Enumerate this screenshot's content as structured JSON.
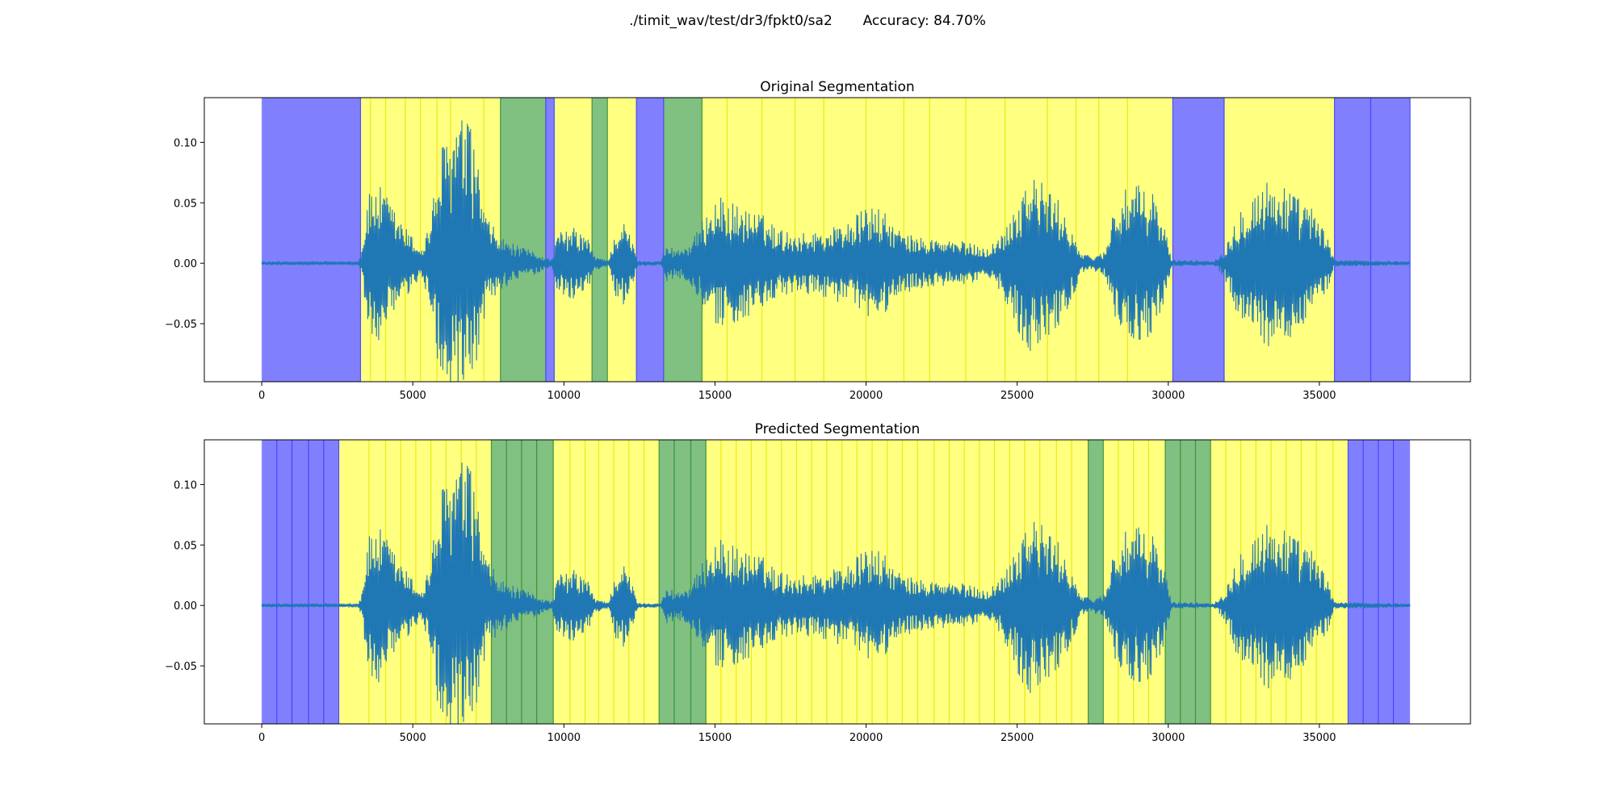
{
  "figure": {
    "title": "./timit_wav/test/dr3/fpkt0/sa2       Accuracy: 84.70%"
  },
  "colors": {
    "silence": "#8080ff",
    "voiced": "#ffff80",
    "unvoiced": "#80c080",
    "waveform": "#1f77b4",
    "boundary_silence": "#3b3bff",
    "boundary_voiced": "#e6e600",
    "boundary_unvoiced": "#2e8b2e"
  },
  "chart_data": [
    {
      "type": "line",
      "title": "Original Segmentation",
      "xlabel": "",
      "ylabel": "",
      "xlim": [
        -1900,
        40000
      ],
      "ylim": [
        -0.098,
        0.137
      ],
      "xticks": [
        0,
        5000,
        10000,
        15000,
        20000,
        25000,
        30000,
        35000
      ],
      "xtick_labels": [
        "0",
        "5000",
        "10000",
        "15000",
        "20000",
        "25000",
        "30000",
        "35000"
      ],
      "yticks": [
        -0.05,
        0.0,
        0.05,
        0.1
      ],
      "ytick_labels": [
        "−0.05",
        "0.00",
        "0.05",
        "0.10"
      ],
      "segments": [
        {
          "start": 0,
          "end": 3270,
          "class": "silence"
        },
        {
          "start": 3270,
          "end": 7900,
          "class": "voiced"
        },
        {
          "start": 7900,
          "end": 9400,
          "class": "unvoiced"
        },
        {
          "start": 9400,
          "end": 9680,
          "class": "silence"
        },
        {
          "start": 9680,
          "end": 10930,
          "class": "voiced"
        },
        {
          "start": 10930,
          "end": 11440,
          "class": "unvoiced"
        },
        {
          "start": 11440,
          "end": 12400,
          "class": "voiced"
        },
        {
          "start": 12400,
          "end": 13300,
          "class": "silence"
        },
        {
          "start": 13300,
          "end": 14570,
          "class": "unvoiced"
        },
        {
          "start": 14570,
          "end": 30150,
          "class": "voiced"
        },
        {
          "start": 30150,
          "end": 31850,
          "class": "silence"
        },
        {
          "start": 31850,
          "end": 35500,
          "class": "voiced"
        },
        {
          "start": 35500,
          "end": 38000,
          "class": "silence"
        }
      ],
      "boundaries": [
        {
          "x": 3270,
          "class": "silence"
        },
        {
          "x": 3600,
          "class": "voiced"
        },
        {
          "x": 4100,
          "class": "voiced"
        },
        {
          "x": 4750,
          "class": "voiced"
        },
        {
          "x": 5250,
          "class": "voiced"
        },
        {
          "x": 5800,
          "class": "voiced"
        },
        {
          "x": 6250,
          "class": "voiced"
        },
        {
          "x": 7350,
          "class": "voiced"
        },
        {
          "x": 7900,
          "class": "unvoiced"
        },
        {
          "x": 9400,
          "class": "silence"
        },
        {
          "x": 9680,
          "class": "silence"
        },
        {
          "x": 10930,
          "class": "unvoiced"
        },
        {
          "x": 11440,
          "class": "unvoiced"
        },
        {
          "x": 12400,
          "class": "silence"
        },
        {
          "x": 13300,
          "class": "silence"
        },
        {
          "x": 14570,
          "class": "unvoiced"
        },
        {
          "x": 15400,
          "class": "voiced"
        },
        {
          "x": 16550,
          "class": "voiced"
        },
        {
          "x": 17650,
          "class": "voiced"
        },
        {
          "x": 18600,
          "class": "voiced"
        },
        {
          "x": 20000,
          "class": "voiced"
        },
        {
          "x": 21250,
          "class": "voiced"
        },
        {
          "x": 22100,
          "class": "voiced"
        },
        {
          "x": 23300,
          "class": "voiced"
        },
        {
          "x": 24600,
          "class": "voiced"
        },
        {
          "x": 26000,
          "class": "voiced"
        },
        {
          "x": 26950,
          "class": "voiced"
        },
        {
          "x": 27700,
          "class": "voiced"
        },
        {
          "x": 28650,
          "class": "voiced"
        },
        {
          "x": 30150,
          "class": "silence"
        },
        {
          "x": 31850,
          "class": "silence"
        },
        {
          "x": 35500,
          "class": "silence"
        },
        {
          "x": 36700,
          "class": "silence"
        },
        {
          "x": 38000,
          "class": "silence"
        }
      ]
    },
    {
      "type": "line",
      "title": "Predicted Segmentation",
      "xlabel": "",
      "ylabel": "",
      "xlim": [
        -1900,
        40000
      ],
      "ylim": [
        -0.098,
        0.137
      ],
      "xticks": [
        0,
        5000,
        10000,
        15000,
        20000,
        25000,
        30000,
        35000
      ],
      "xtick_labels": [
        "0",
        "5000",
        "10000",
        "15000",
        "20000",
        "25000",
        "30000",
        "35000"
      ],
      "yticks": [
        -0.05,
        0.0,
        0.05,
        0.1
      ],
      "ytick_labels": [
        "−0.05",
        "0.00",
        "0.05",
        "0.10"
      ],
      "segments": [
        {
          "start": 0,
          "end": 2550,
          "class": "silence"
        },
        {
          "start": 2550,
          "end": 7600,
          "class": "voiced"
        },
        {
          "start": 7600,
          "end": 9650,
          "class": "unvoiced"
        },
        {
          "start": 9650,
          "end": 13150,
          "class": "voiced"
        },
        {
          "start": 13150,
          "end": 14700,
          "class": "unvoiced"
        },
        {
          "start": 14700,
          "end": 27350,
          "class": "voiced"
        },
        {
          "start": 27350,
          "end": 27850,
          "class": "unvoiced"
        },
        {
          "start": 27850,
          "end": 29900,
          "class": "voiced"
        },
        {
          "start": 29900,
          "end": 31400,
          "class": "unvoiced"
        },
        {
          "start": 31400,
          "end": 35950,
          "class": "voiced"
        },
        {
          "start": 35950,
          "end": 38000,
          "class": "silence"
        }
      ],
      "boundaries": [
        {
          "x": 500,
          "class": "silence"
        },
        {
          "x": 1000,
          "class": "silence"
        },
        {
          "x": 1550,
          "class": "silence"
        },
        {
          "x": 2050,
          "class": "silence"
        },
        {
          "x": 2550,
          "class": "silence"
        },
        {
          "x": 3550,
          "class": "voiced"
        },
        {
          "x": 4100,
          "class": "voiced"
        },
        {
          "x": 4600,
          "class": "voiced"
        },
        {
          "x": 5100,
          "class": "voiced"
        },
        {
          "x": 5600,
          "class": "voiced"
        },
        {
          "x": 6100,
          "class": "voiced"
        },
        {
          "x": 6600,
          "class": "voiced"
        },
        {
          "x": 7100,
          "class": "voiced"
        },
        {
          "x": 7600,
          "class": "unvoiced"
        },
        {
          "x": 8100,
          "class": "unvoiced"
        },
        {
          "x": 8600,
          "class": "unvoiced"
        },
        {
          "x": 9100,
          "class": "unvoiced"
        },
        {
          "x": 9650,
          "class": "unvoiced"
        },
        {
          "x": 10200,
          "class": "voiced"
        },
        {
          "x": 10700,
          "class": "voiced"
        },
        {
          "x": 11150,
          "class": "voiced"
        },
        {
          "x": 11650,
          "class": "voiced"
        },
        {
          "x": 12150,
          "class": "voiced"
        },
        {
          "x": 12650,
          "class": "voiced"
        },
        {
          "x": 13150,
          "class": "unvoiced"
        },
        {
          "x": 13650,
          "class": "unvoiced"
        },
        {
          "x": 14200,
          "class": "unvoiced"
        },
        {
          "x": 14700,
          "class": "unvoiced"
        },
        {
          "x": 15200,
          "class": "voiced"
        },
        {
          "x": 15700,
          "class": "voiced"
        },
        {
          "x": 16200,
          "class": "voiced"
        },
        {
          "x": 16700,
          "class": "voiced"
        },
        {
          "x": 17200,
          "class": "voiced"
        },
        {
          "x": 17700,
          "class": "voiced"
        },
        {
          "x": 18200,
          "class": "voiced"
        },
        {
          "x": 18700,
          "class": "voiced"
        },
        {
          "x": 19200,
          "class": "voiced"
        },
        {
          "x": 19700,
          "class": "voiced"
        },
        {
          "x": 20200,
          "class": "voiced"
        },
        {
          "x": 20700,
          "class": "voiced"
        },
        {
          "x": 21200,
          "class": "voiced"
        },
        {
          "x": 21700,
          "class": "voiced"
        },
        {
          "x": 22250,
          "class": "voiced"
        },
        {
          "x": 22750,
          "class": "voiced"
        },
        {
          "x": 23250,
          "class": "voiced"
        },
        {
          "x": 23750,
          "class": "voiced"
        },
        {
          "x": 24250,
          "class": "voiced"
        },
        {
          "x": 24750,
          "class": "voiced"
        },
        {
          "x": 25250,
          "class": "voiced"
        },
        {
          "x": 25750,
          "class": "voiced"
        },
        {
          "x": 26300,
          "class": "voiced"
        },
        {
          "x": 26800,
          "class": "voiced"
        },
        {
          "x": 27350,
          "class": "unvoiced"
        },
        {
          "x": 27850,
          "class": "unvoiced"
        },
        {
          "x": 28350,
          "class": "voiced"
        },
        {
          "x": 28850,
          "class": "voiced"
        },
        {
          "x": 29350,
          "class": "voiced"
        },
        {
          "x": 29900,
          "class": "unvoiced"
        },
        {
          "x": 30400,
          "class": "unvoiced"
        },
        {
          "x": 30900,
          "class": "unvoiced"
        },
        {
          "x": 31400,
          "class": "unvoiced"
        },
        {
          "x": 31900,
          "class": "voiced"
        },
        {
          "x": 32400,
          "class": "voiced"
        },
        {
          "x": 32900,
          "class": "voiced"
        },
        {
          "x": 33400,
          "class": "voiced"
        },
        {
          "x": 33900,
          "class": "voiced"
        },
        {
          "x": 34400,
          "class": "voiced"
        },
        {
          "x": 34900,
          "class": "voiced"
        },
        {
          "x": 35450,
          "class": "voiced"
        },
        {
          "x": 35950,
          "class": "silence"
        },
        {
          "x": 36450,
          "class": "silence"
        },
        {
          "x": 36950,
          "class": "silence"
        },
        {
          "x": 37450,
          "class": "silence"
        }
      ]
    }
  ],
  "waveform": {
    "x_start": 0,
    "x_end": 38000,
    "envelope": [
      [
        0,
        0.0015
      ],
      [
        3200,
        0.0015
      ],
      [
        3300,
        0.01
      ],
      [
        3500,
        0.055
      ],
      [
        3800,
        0.067
      ],
      [
        4100,
        0.058
      ],
      [
        4500,
        0.04
      ],
      [
        4900,
        0.025
      ],
      [
        5300,
        0.012
      ],
      [
        5600,
        0.04
      ],
      [
        5900,
        0.095
      ],
      [
        6200,
        0.11
      ],
      [
        6500,
        0.125
      ],
      [
        6900,
        0.115
      ],
      [
        7200,
        0.08
      ],
      [
        7400,
        0.04
      ],
      [
        7900,
        0.022
      ],
      [
        8500,
        0.014
      ],
      [
        9000,
        0.01
      ],
      [
        9400,
        0.005
      ],
      [
        9600,
        0.003
      ],
      [
        9800,
        0.025
      ],
      [
        10300,
        0.03
      ],
      [
        10800,
        0.022
      ],
      [
        11000,
        0.006
      ],
      [
        11500,
        0.003
      ],
      [
        11700,
        0.028
      ],
      [
        12000,
        0.035
      ],
      [
        12300,
        0.016
      ],
      [
        12450,
        0.002
      ],
      [
        13200,
        0.002
      ],
      [
        13400,
        0.015
      ],
      [
        13800,
        0.012
      ],
      [
        14200,
        0.018
      ],
      [
        14500,
        0.03
      ],
      [
        14800,
        0.05
      ],
      [
        15200,
        0.055
      ],
      [
        15800,
        0.048
      ],
      [
        16600,
        0.04
      ],
      [
        17200,
        0.028
      ],
      [
        17800,
        0.025
      ],
      [
        18600,
        0.028
      ],
      [
        19400,
        0.035
      ],
      [
        19900,
        0.045
      ],
      [
        20300,
        0.048
      ],
      [
        20700,
        0.04
      ],
      [
        21200,
        0.025
      ],
      [
        21700,
        0.022
      ],
      [
        22500,
        0.02
      ],
      [
        23300,
        0.018
      ],
      [
        24000,
        0.012
      ],
      [
        24500,
        0.025
      ],
      [
        25000,
        0.055
      ],
      [
        25400,
        0.075
      ],
      [
        25800,
        0.068
      ],
      [
        26300,
        0.055
      ],
      [
        26800,
        0.032
      ],
      [
        27100,
        0.008
      ],
      [
        27500,
        0.006
      ],
      [
        27900,
        0.01
      ],
      [
        28200,
        0.048
      ],
      [
        28600,
        0.062
      ],
      [
        29100,
        0.065
      ],
      [
        29500,
        0.06
      ],
      [
        29900,
        0.03
      ],
      [
        30100,
        0.003
      ],
      [
        31500,
        0.002
      ],
      [
        31800,
        0.01
      ],
      [
        32000,
        0.02
      ],
      [
        32300,
        0.045
      ],
      [
        32800,
        0.06
      ],
      [
        33300,
        0.07
      ],
      [
        33800,
        0.068
      ],
      [
        34300,
        0.055
      ],
      [
        34800,
        0.045
      ],
      [
        35300,
        0.02
      ],
      [
        35500,
        0.003
      ],
      [
        38000,
        0.0015
      ]
    ]
  }
}
